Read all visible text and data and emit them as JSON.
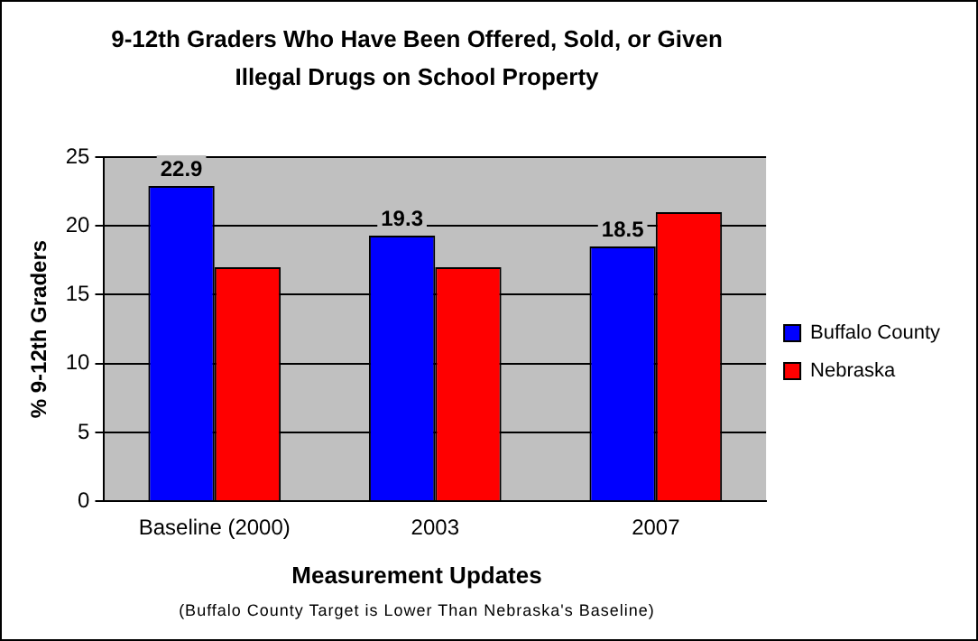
{
  "chart_data": {
    "type": "bar",
    "title": "9-12th Graders Who Have Been Offered, Sold, or Given Illegal Drugs on School Property",
    "xlabel": "Measurement Updates",
    "ylabel": "% 9-12th Graders",
    "annotations": [
      "(Buffalo County Target is Lower Than Nebraska's Baseline)"
    ],
    "categories": [
      "Baseline (2000)",
      "2003",
      "2007"
    ],
    "series": [
      {
        "name": "Buffalo County",
        "color": "#0000ff",
        "values": [
          22.9,
          19.3,
          18.5
        ],
        "value_labels": [
          "22.9",
          "19.3",
          "18.5"
        ]
      },
      {
        "name": "Nebraska",
        "color": "#ff0000",
        "values": [
          17,
          17,
          21
        ]
      }
    ],
    "ylim": [
      0,
      25
    ],
    "yticks": [
      0,
      5,
      10,
      15,
      20,
      25
    ],
    "grid": "y",
    "legend": "right"
  }
}
